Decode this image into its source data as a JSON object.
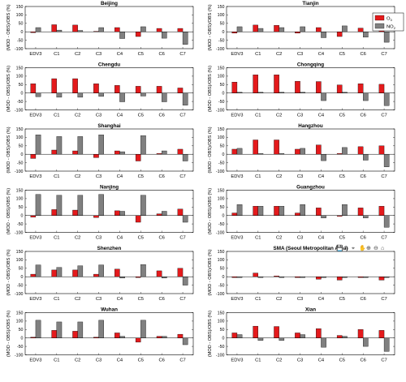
{
  "figure": {
    "ylabel": "(MOD - OBS)/OBS (%)",
    "legend": [
      {
        "label": "O",
        "sub": "3",
        "color": "#e41a1c"
      },
      {
        "label": "NO",
        "sub": "2",
        "color": "#808080"
      }
    ],
    "toolbar_icons": [
      "save-icon",
      "brush-icon",
      "datatip-icon",
      "pan-icon",
      "zoom-in-icon",
      "zoom-out-icon",
      "home-icon"
    ]
  },
  "chart_data": {
    "type": "bar",
    "layout": "grid 7x2",
    "categories": [
      "EDV3",
      "C1",
      "C2",
      "C3",
      "C4",
      "C5",
      "C6",
      "C7"
    ],
    "ylim": [
      -100,
      150
    ],
    "yticks": [
      -100,
      -50,
      0,
      50,
      100,
      150
    ],
    "series_names": [
      "O3",
      "NO2"
    ],
    "colors": {
      "O3": "#e41a1c",
      "NO2": "#808080"
    },
    "panels": [
      {
        "title": "Beijing",
        "o3": [
          -5,
          42,
          40,
          3,
          25,
          -28,
          20,
          20
        ],
        "no2": [
          25,
          10,
          8,
          25,
          -40,
          30,
          -38,
          -75
        ]
      },
      {
        "title": "Tianjin",
        "o3": [
          -8,
          40,
          38,
          -8,
          25,
          -28,
          22,
          35
        ],
        "no2": [
          30,
          20,
          25,
          30,
          -35,
          35,
          -32,
          -62
        ]
      },
      {
        "title": "Chengdu",
        "o3": [
          55,
          85,
          85,
          55,
          45,
          40,
          40,
          30
        ],
        "no2": [
          -22,
          -25,
          -25,
          -20,
          -52,
          -18,
          -52,
          -72
        ]
      },
      {
        "title": "Chongqing",
        "o3": [
          65,
          108,
          108,
          70,
          68,
          48,
          55,
          52
        ],
        "no2": [
          5,
          5,
          5,
          5,
          -45,
          5,
          -45,
          -75
        ]
      },
      {
        "title": "Shanghai",
        "o3": [
          -25,
          25,
          20,
          -20,
          20,
          -40,
          5,
          30
        ],
        "no2": [
          115,
          105,
          105,
          115,
          15,
          110,
          20,
          -40
        ]
      },
      {
        "title": "Hangzhou",
        "o3": [
          30,
          85,
          85,
          30,
          55,
          5,
          45,
          50
        ],
        "no2": [
          35,
          5,
          5,
          35,
          -38,
          40,
          -35,
          -75
        ]
      },
      {
        "title": "Nanjing",
        "o3": [
          -10,
          35,
          32,
          -12,
          28,
          -40,
          10,
          38
        ],
        "no2": [
          125,
          120,
          120,
          125,
          25,
          120,
          25,
          -40
        ]
      },
      {
        "title": "Guangzhou",
        "o3": [
          15,
          55,
          55,
          15,
          45,
          -5,
          45,
          55
        ],
        "no2": [
          65,
          55,
          55,
          65,
          -15,
          65,
          -15,
          -70
        ]
      },
      {
        "title": "Shenzhen",
        "o3": [
          15,
          40,
          40,
          15,
          45,
          -5,
          35,
          50
        ],
        "no2": [
          70,
          55,
          65,
          70,
          -8,
          72,
          -8,
          -50
        ]
      },
      {
        "title": "SMA (Seoul Metropolitan Area)",
        "o3": [
          -5,
          22,
          5,
          -5,
          -15,
          -20,
          -5,
          -20
        ],
        "no2": [
          -5,
          -5,
          -5,
          -5,
          -5,
          -5,
          -5,
          -5
        ]
      },
      {
        "title": "Wuhan",
        "o3": [
          5,
          45,
          40,
          5,
          30,
          -25,
          10,
          22
        ],
        "no2": [
          105,
          95,
          95,
          105,
          10,
          105,
          10,
          -40
        ]
      },
      {
        "title": "Xian",
        "o3": [
          30,
          70,
          68,
          30,
          55,
          15,
          50,
          45
        ],
        "no2": [
          20,
          -15,
          -15,
          20,
          -55,
          10,
          -50,
          -80
        ]
      }
    ]
  }
}
